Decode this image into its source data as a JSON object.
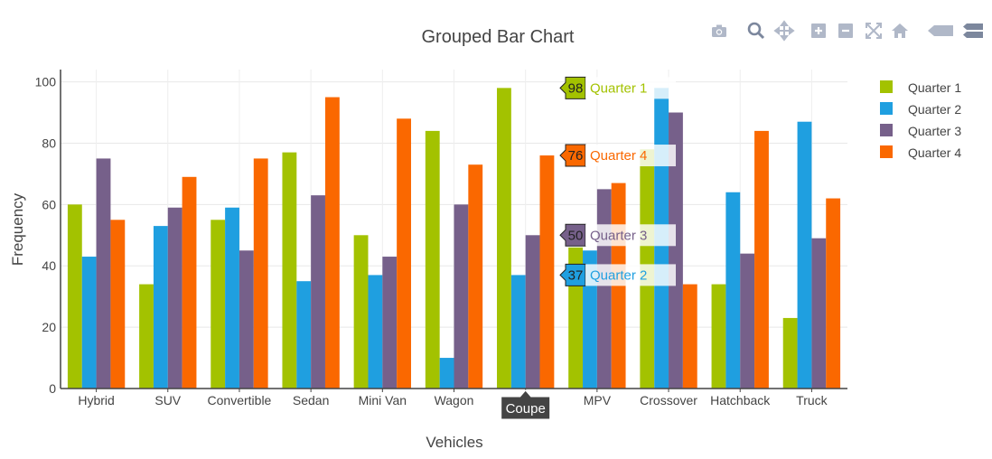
{
  "modebar": {
    "icons": [
      "camera-icon",
      "zoom-icon",
      "pan-icon",
      "zoom-in-icon",
      "zoom-out-icon",
      "autoscale-icon",
      "home-icon",
      "spike-lines-icon",
      "compare-hover-icon"
    ]
  },
  "hover": {
    "category": "Coupe",
    "labels": [
      {
        "series": "Quarter 1",
        "value": "98"
      },
      {
        "series": "Quarter 4",
        "value": "76"
      },
      {
        "series": "Quarter 3",
        "value": "50"
      },
      {
        "series": "Quarter 2",
        "value": "37"
      }
    ]
  },
  "chart_data": {
    "type": "bar",
    "barmode": "group",
    "title": "Grouped Bar Chart",
    "xlabel": "Vehicles",
    "ylabel": "Frequency",
    "ylim": [
      0,
      100
    ],
    "yticks": [
      0,
      20,
      40,
      60,
      80,
      100
    ],
    "grid": true,
    "legend_position": "top-right",
    "categories": [
      "Hybrid",
      "SUV",
      "Convertible",
      "Sedan",
      "Mini Van",
      "Wagon",
      "Coupe",
      "MPV",
      "Crossover",
      "Hatchback",
      "Truck"
    ],
    "series": [
      {
        "name": "Quarter 1",
        "color": "#a3c200",
        "values": [
          60,
          34,
          55,
          77,
          50,
          84,
          98,
          46,
          78,
          34,
          23
        ]
      },
      {
        "name": "Quarter 2",
        "color": "#1f9fe0",
        "values": [
          43,
          53,
          59,
          35,
          37,
          10,
          37,
          45,
          98,
          64,
          87
        ]
      },
      {
        "name": "Quarter 3",
        "color": "#76608a",
        "values": [
          75,
          59,
          45,
          63,
          43,
          60,
          50,
          65,
          90,
          44,
          49
        ]
      },
      {
        "name": "Quarter 4",
        "color": "#fa6800",
        "values": [
          55,
          69,
          75,
          95,
          88,
          73,
          76,
          67,
          34,
          84,
          62
        ]
      }
    ]
  }
}
